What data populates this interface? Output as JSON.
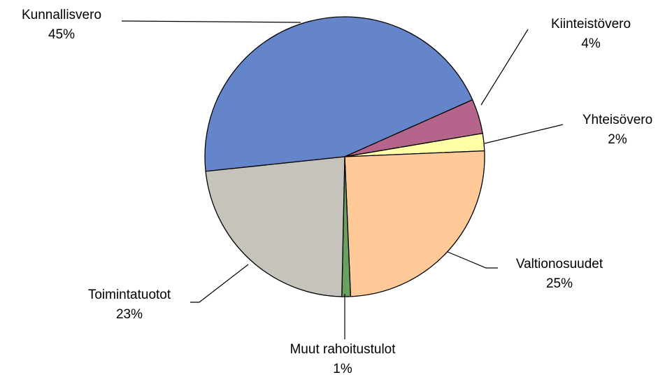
{
  "chart_data": {
    "type": "pie",
    "categories": [
      "Kunnallisvero",
      "Kiinteistövero",
      "Yhteisövero",
      "Valtionosuudet",
      "Muut rahoitustulot",
      "Toimintatuotot"
    ],
    "values": [
      45,
      4,
      2,
      25,
      1,
      23
    ],
    "value_labels": [
      "45%",
      "4%",
      "2%",
      "25%",
      "1%",
      "23%"
    ],
    "colors": [
      "#6485c9",
      "#b5658b",
      "#ffffa8",
      "#ffca98",
      "#6aa060",
      "#c5c3bc"
    ]
  }
}
